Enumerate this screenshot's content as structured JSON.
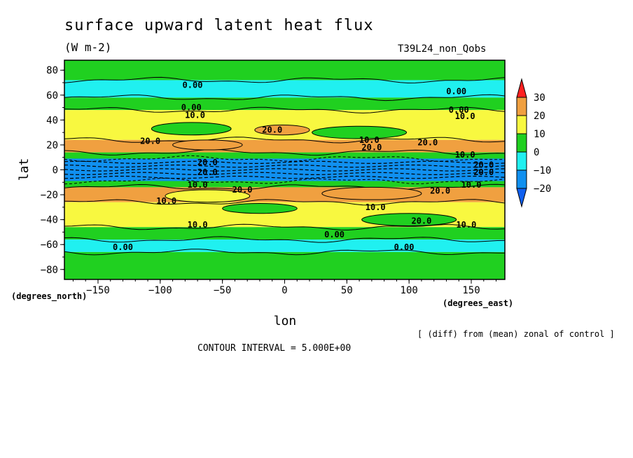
{
  "chart_data": {
    "type": "heatmap",
    "title": "surface upward latent heat flux",
    "units": "(W m-2)",
    "run_label": "T39L24_non_Qobs",
    "footer_note": "[ (diff) from (mean) zonal of control ]",
    "contour_interval_text": "CONTOUR INTERVAL = 5.000E+00",
    "xlabel": "lon",
    "ylabel": "lat",
    "x_units_label": "(degrees_east)",
    "y_units_label": "(degrees_north)",
    "xlim": [
      -177,
      177
    ],
    "ylim": [
      -88,
      88
    ],
    "x_ticks": [
      -150,
      -100,
      -50,
      0,
      50,
      100,
      150
    ],
    "y_ticks": [
      80,
      60,
      40,
      20,
      0,
      -20,
      -40,
      -60,
      -80
    ],
    "colorbar": {
      "levels": [
        30,
        20,
        10,
        0,
        -10,
        -20
      ],
      "colors": [
        "#ff2020",
        "#f0a040",
        "#f8f840",
        "#20d020",
        "#20f0f0",
        "#1090f0",
        "#1060f0"
      ]
    },
    "bands": [
      {
        "lat_top": 88,
        "lat_bottom": 72,
        "value_class": "0 to 10",
        "color": "#20d020"
      },
      {
        "lat_top": 72,
        "lat_bottom": 58,
        "value_class": "-10 to 0",
        "color": "#20f0f0"
      },
      {
        "lat_top": 58,
        "lat_bottom": 48,
        "value_class": "0 to 10",
        "color": "#20d020"
      },
      {
        "lat_top": 48,
        "lat_bottom": 24,
        "value_class": "10 to 20",
        "color": "#f8f840"
      },
      {
        "lat_top": 24,
        "lat_bottom": 14,
        "value_class": "20 to 30",
        "color": "#f0a040"
      },
      {
        "lat_top": 14,
        "lat_bottom": 9,
        "value_class": "0 to 10",
        "color": "#20d020"
      },
      {
        "lat_top": 9,
        "lat_bottom": -9,
        "value_class": "-20 to -10",
        "color": "#1090f0"
      },
      {
        "lat_top": -9,
        "lat_bottom": -14,
        "value_class": "0 to 10",
        "color": "#20d020"
      },
      {
        "lat_top": -14,
        "lat_bottom": -26,
        "value_class": "20 to 30",
        "color": "#f0a040"
      },
      {
        "lat_top": -26,
        "lat_bottom": -46,
        "value_class": "10 to 20",
        "color": "#f8f840"
      },
      {
        "lat_top": -46,
        "lat_bottom": -56,
        "value_class": "0 to 10",
        "color": "#20d020"
      },
      {
        "lat_top": -56,
        "lat_bottom": -66,
        "value_class": "-10 to 0",
        "color": "#20f0f0"
      },
      {
        "lat_top": -66,
        "lat_bottom": -88,
        "value_class": "0 to 10",
        "color": "#20d020"
      }
    ],
    "contour_labels": [
      {
        "text": "0.00",
        "lon": -74,
        "lat": 68
      },
      {
        "text": "0.00",
        "lon": 138,
        "lat": 63
      },
      {
        "text": "0.00",
        "lon": -75,
        "lat": 50
      },
      {
        "text": "0.00",
        "lon": 140,
        "lat": 48
      },
      {
        "text": "10.0",
        "lon": -72,
        "lat": 44
      },
      {
        "text": "10.0",
        "lon": 145,
        "lat": 43
      },
      {
        "text": "20.0",
        "lon": -10,
        "lat": 32
      },
      {
        "text": "20.0",
        "lon": -108,
        "lat": 23
      },
      {
        "text": "10.0",
        "lon": 68,
        "lat": 24
      },
      {
        "text": "20.0",
        "lon": 70,
        "lat": 18
      },
      {
        "text": "20.0",
        "lon": 115,
        "lat": 22
      },
      {
        "text": "10.0",
        "lon": 145,
        "lat": 12
      },
      {
        "text": "20.0",
        "lon": -62,
        "lat": 6
      },
      {
        "text": "20.0",
        "lon": 160,
        "lat": 4
      },
      {
        "text": "20.0",
        "lon": -62,
        "lat": -2
      },
      {
        "text": "20.0",
        "lon": 160,
        "lat": -2
      },
      {
        "text": "10.0",
        "lon": -70,
        "lat": -12
      },
      {
        "text": "10.0",
        "lon": 150,
        "lat": -12
      },
      {
        "text": "20.0",
        "lon": -34,
        "lat": -16
      },
      {
        "text": "20.0",
        "lon": 125,
        "lat": -17
      },
      {
        "text": "10.0",
        "lon": -95,
        "lat": -25
      },
      {
        "text": "10.0",
        "lon": 73,
        "lat": -30
      },
      {
        "text": "20.0",
        "lon": 110,
        "lat": -41
      },
      {
        "text": "10.0",
        "lon": -70,
        "lat": -44
      },
      {
        "text": "10.0",
        "lon": 146,
        "lat": -44
      },
      {
        "text": "0.00",
        "lon": 40,
        "lat": -52
      },
      {
        "text": "0.00",
        "lon": -130,
        "lat": -62
      },
      {
        "text": "0.00",
        "lon": 96,
        "lat": -62
      }
    ]
  }
}
